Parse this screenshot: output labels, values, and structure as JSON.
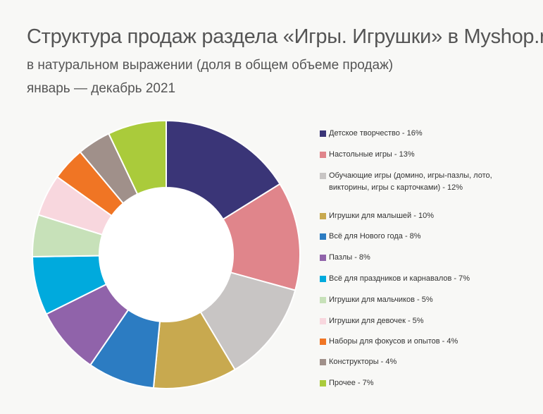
{
  "header": {
    "title": "Структура продаж раздела «Игры. Игрушки» в Myshop.ru",
    "subtitle": "в натуральном выражении (доля в общем объеме продаж)",
    "period": "январь — декабрь 2021"
  },
  "chart_data": {
    "type": "pie",
    "title": "Структура продаж раздела «Игры. Игрушки» в Myshop.ru",
    "subtitle": "в натуральном выражении (доля в общем объеме продаж)",
    "legend_position": "right",
    "categories": [
      "Детское творчество",
      "Настольные игры",
      "Обучающие игры (домино, игры-пазлы, лото, викторины, игры с карточками)",
      "Игрушки для малышей",
      "Всё для Нового года",
      "Пазлы",
      "Всё для праздников и карнавалов",
      "Игрушки для мальчиков",
      "Игрушки для девочек",
      "Наборы для фокусов и опытов",
      "Конструкторы",
      "Прочее"
    ],
    "values": [
      16,
      13,
      12,
      10,
      8,
      8,
      7,
      5,
      5,
      4,
      4,
      7
    ],
    "colors": [
      "#3a3577",
      "#e0858b",
      "#c8c5c4",
      "#c8a94f",
      "#2c7cc2",
      "#9063aa",
      "#00aadd",
      "#c7e1b9",
      "#f8d7de",
      "#f07524",
      "#a0908a",
      "#aacb3b"
    ],
    "legend_labels": [
      "Детское творчество - 16%",
      "Настольные игры - 13%",
      "Обучающие игры (домино, игры-пазлы, лото, викторины, игры с карточками) - 12%",
      "Игрушки для малышей - 10%",
      "Всё для Нового года - 8%",
      "Пазлы - 8%",
      "Всё для праздников и карнавалов - 7%",
      "Игрушки для мальчиков - 5%",
      "Игрушки для девочек - 5%",
      "Наборы для фокусов и опытов  - 4%",
      "Конструкторы - 4%",
      "Прочее - 7%"
    ]
  }
}
